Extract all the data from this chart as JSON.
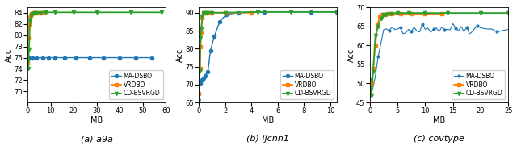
{
  "subplots": [
    {
      "caption": "(a) a9a",
      "xlabel": "MB",
      "ylabel": "Acc",
      "xlim": [
        0,
        60
      ],
      "ylim": [
        68,
        85
      ],
      "yticks": [
        70,
        72,
        74,
        76,
        78,
        80,
        82,
        84
      ],
      "xticks": [
        0,
        10,
        20,
        30,
        40,
        50,
        60
      ],
      "series": [
        {
          "label": "MA-DSBO",
          "color": "#1f77b4",
          "marker": "o",
          "markersize": 3,
          "linewidth": 1.0,
          "x": [
            0.0,
            0.8,
            2.0,
            4.0,
            6.5,
            9.0,
            12.0,
            16.0,
            21.0,
            27.0,
            33.0,
            40.0,
            47.0,
            54.0
          ],
          "y": [
            75.5,
            76.0,
            76.0,
            76.0,
            76.0,
            76.0,
            76.0,
            76.0,
            76.0,
            76.0,
            76.0,
            76.0,
            76.0,
            76.0
          ]
        },
        {
          "label": "VRDBO",
          "color": "#ff7f0e",
          "marker": "s",
          "markersize": 3,
          "linewidth": 1.3,
          "x": [
            0.0,
            0.3,
            0.6,
            1.0,
            1.4,
            1.9,
            2.5,
            3.2,
            4.2,
            5.5,
            7.5
          ],
          "y": [
            75.0,
            79.5,
            82.0,
            83.2,
            83.6,
            83.9,
            84.0,
            84.0,
            84.0,
            84.0,
            84.1
          ]
        },
        {
          "label": "CD-BSVRGD",
          "color": "#2ca02c",
          "marker": "v",
          "markersize": 3,
          "linewidth": 1.3,
          "x": [
            0.0,
            0.3,
            0.7,
            1.1,
            1.6,
            2.2,
            3.0,
            4.0,
            5.5,
            8.0,
            12.0,
            20.0,
            30.0,
            45.0,
            58.0
          ],
          "y": [
            75.5,
            74.0,
            77.5,
            82.5,
            83.5,
            83.8,
            84.0,
            84.0,
            84.0,
            84.1,
            84.1,
            84.1,
            84.1,
            84.1,
            84.1
          ]
        }
      ],
      "legend_loc": "lower right"
    },
    {
      "caption": "(b) ijcnn1",
      "xlabel": "MB",
      "ylabel": "Acc",
      "xlim": [
        0,
        10.5
      ],
      "ylim": [
        65,
        91.5
      ],
      "yticks": [
        65,
        70,
        75,
        80,
        85,
        90
      ],
      "xticks": [
        0,
        2,
        4,
        6,
        8,
        10
      ],
      "series": [
        {
          "label": "MA-DSBO",
          "color": "#1f77b4",
          "marker": "o",
          "markersize": 3,
          "linewidth": 1.0,
          "x": [
            0.0,
            0.15,
            0.25,
            0.35,
            0.5,
            0.7,
            0.9,
            1.2,
            1.6,
            2.1,
            3.0,
            5.0,
            8.5,
            10.5
          ],
          "y": [
            67.5,
            70.5,
            71.2,
            71.8,
            72.5,
            73.5,
            79.5,
            83.5,
            87.5,
            89.5,
            90.0,
            90.2,
            90.2,
            90.2
          ]
        },
        {
          "label": "VRDBO",
          "color": "#ff7f0e",
          "marker": "s",
          "markersize": 3,
          "linewidth": 1.3,
          "x": [
            0.0,
            0.1,
            0.15,
            0.2,
            0.28,
            0.38,
            0.5,
            0.7,
            1.0,
            2.0,
            4.0
          ],
          "y": [
            67.5,
            74.5,
            80.5,
            84.5,
            88.5,
            90.0,
            90.0,
            90.0,
            90.0,
            90.0,
            90.0
          ]
        },
        {
          "label": "CD-BSVRGD",
          "color": "#2ca02c",
          "marker": "v",
          "markersize": 3,
          "linewidth": 1.3,
          "x": [
            0.0,
            0.1,
            0.15,
            0.2,
            0.28,
            0.38,
            0.5,
            0.7,
            1.0,
            2.0,
            4.5,
            7.0,
            10.5
          ],
          "y": [
            65.5,
            74.0,
            83.0,
            85.5,
            89.0,
            90.0,
            90.0,
            90.0,
            90.0,
            90.0,
            90.2,
            90.2,
            90.2
          ]
        }
      ],
      "legend_loc": "lower right"
    },
    {
      "caption": "(c) covtype",
      "xlabel": "MB",
      "ylabel": "Acc",
      "xlim": [
        0,
        25
      ],
      "ylim": [
        45,
        70
      ],
      "yticks": [
        45,
        50,
        55,
        60,
        65,
        70
      ],
      "xticks": [
        0,
        5,
        10,
        15,
        20,
        25
      ],
      "series": [
        {
          "label": "MA-DSBO",
          "color": "#1f77b4",
          "marker": "o",
          "markersize": 2,
          "linewidth": 0.8,
          "noisy": true,
          "noise_seed": 42,
          "noise_std": 0.7,
          "noise_start": 6,
          "x": [
            0.0,
            0.3,
            0.6,
            1.0,
            1.5,
            2.0,
            2.5,
            3.0,
            3.5,
            4.0,
            4.5,
            5.0,
            5.5,
            6.0,
            6.5,
            7.0,
            7.5,
            8.0,
            8.5,
            9.0,
            9.5,
            10.0,
            10.5,
            11.0,
            11.5,
            12.0,
            12.5,
            13.0,
            13.5,
            14.0,
            14.5,
            15.0,
            15.5,
            16.0,
            16.5,
            17.0,
            17.5,
            18.0,
            18.5,
            19.0,
            19.5,
            20.0,
            21.0,
            22.0,
            23.0,
            24.0,
            25.0
          ],
          "y": [
            47.0,
            47.5,
            49.0,
            52.0,
            57.0,
            60.5,
            63.0,
            63.8,
            64.2,
            64.4,
            64.5,
            64.6,
            64.5,
            64.4,
            64.5,
            64.6,
            64.4,
            64.5,
            64.4,
            64.5,
            64.6,
            64.4,
            64.5,
            64.4,
            64.6,
            64.5,
            64.4,
            64.5,
            64.6,
            64.4,
            64.5,
            64.4,
            64.6,
            64.5,
            64.4,
            64.5,
            64.6,
            64.4,
            64.5,
            64.4,
            64.6,
            64.5,
            64.4,
            64.5,
            64.6,
            64.4,
            64.5
          ]
        },
        {
          "label": "VRDBO",
          "color": "#ff7f0e",
          "marker": "s",
          "markersize": 3,
          "linewidth": 1.3,
          "noisy": false,
          "x": [
            0.0,
            0.3,
            0.6,
            1.0,
            1.4,
            1.8,
            2.2,
            2.7,
            3.2,
            4.0,
            5.5,
            7.5,
            10.0,
            13.0
          ],
          "y": [
            47.5,
            50.0,
            54.0,
            60.0,
            65.5,
            67.5,
            68.0,
            68.2,
            68.3,
            68.3,
            68.3,
            68.3,
            68.3,
            68.3
          ]
        },
        {
          "label": "CD-BSVRGD",
          "color": "#2ca02c",
          "marker": "v",
          "markersize": 3,
          "linewidth": 1.3,
          "noisy": false,
          "x": [
            0.0,
            0.3,
            0.6,
            1.0,
            1.5,
            2.0,
            2.5,
            3.0,
            3.8,
            5.0,
            7.0,
            10.0,
            14.0,
            20.0,
            25.0
          ],
          "y": [
            51.0,
            47.0,
            53.0,
            62.5,
            65.0,
            67.0,
            68.0,
            68.2,
            68.4,
            68.5,
            68.5,
            68.5,
            68.5,
            68.5,
            68.5
          ]
        }
      ],
      "legend_loc": "lower right"
    }
  ],
  "fig_width": 6.4,
  "fig_height": 1.81,
  "dpi": 100,
  "label_fontsize": 7,
  "tick_fontsize": 6,
  "caption_fontsize": 8,
  "legend_fontsize": 5.5
}
